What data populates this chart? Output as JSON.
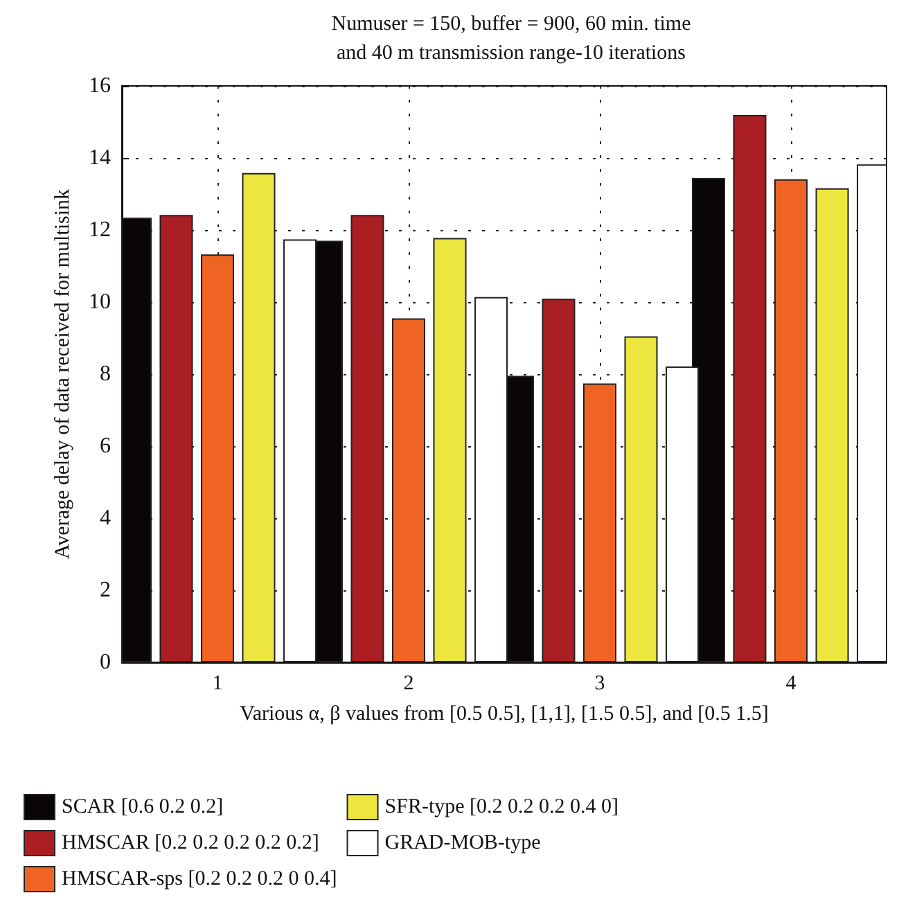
{
  "chart_data": {
    "type": "bar",
    "title": "Numuser = 150, buffer = 900, 60 min. time\nand 40 m transmission range-10 iterations",
    "xlabel": "Various α, β values from [0.5 0.5], [1,1], [1.5 0.5], and [0.5 1.5]",
    "ylabel": "Average delay of data received for multisink",
    "categories": [
      "1",
      "2",
      "3",
      "4"
    ],
    "series": [
      {
        "name": "SCAR [0.6 0.2 0.2]",
        "color": "#0a0607",
        "values": [
          12.34,
          11.7,
          7.95,
          13.44
        ]
      },
      {
        "name": "HMSCAR [0.2 0.2 0.2 0.2 0.2]",
        "color": "#ab1e23",
        "values": [
          12.42,
          12.42,
          10.09,
          15.19
        ]
      },
      {
        "name": "HMSCAR-sps [0.2 0.2 0.2 0 0.4]",
        "color": "#f06423",
        "values": [
          11.32,
          9.55,
          7.74,
          13.41
        ]
      },
      {
        "name": "SFR-type [0.2 0.2 0.2 0.4 0]",
        "color": "#ece63f",
        "values": [
          13.58,
          11.78,
          9.05,
          13.16
        ]
      },
      {
        "name": "GRAD-MOB-type",
        "color": "#ffffff",
        "values": [
          11.74,
          10.14,
          8.21,
          13.82
        ]
      }
    ],
    "ylim": [
      0,
      16
    ],
    "yticks": [
      0,
      2,
      4,
      6,
      8,
      10,
      12,
      14,
      16
    ],
    "grid": true,
    "legend": "bottom"
  }
}
